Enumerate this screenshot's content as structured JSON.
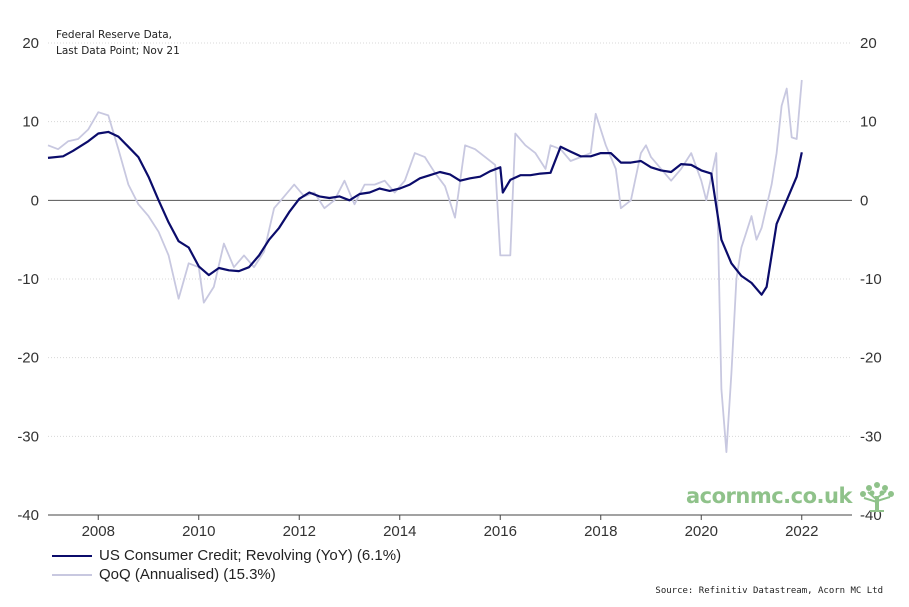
{
  "note": {
    "line1": "Federal Reserve Data,",
    "line2": "Last Data Point; Nov 21"
  },
  "legend": {
    "items": [
      {
        "label": "US Consumer Credit; Revolving (YoY) (6.1%)",
        "color": "#0b0c6b"
      },
      {
        "label": "QoQ (Annualised) (15.3%)",
        "color": "#c8c8e0"
      }
    ]
  },
  "source": "Source: Refinitiv Datastream, Acorn MC Ltd",
  "brand": {
    "text": "acornmc.co.uk",
    "icon": "tree-icon",
    "color": "#8fc28a"
  },
  "chart_data": {
    "type": "line",
    "title": "",
    "xlabel": "",
    "ylabel": "",
    "xlim": [
      2007.0,
      2023.0
    ],
    "ylim": [
      -40,
      20
    ],
    "xticks": [
      2008,
      2010,
      2012,
      2014,
      2016,
      2018,
      2020,
      2022
    ],
    "yticks_left": [
      20,
      10,
      0,
      -10,
      -20,
      -30,
      -40
    ],
    "yticks_right": [
      20,
      10,
      0,
      -10,
      -20,
      -30,
      -40
    ],
    "grid": "horizontal dotted",
    "zero_line": true,
    "legend_position": "bottom-left",
    "series": [
      {
        "name": "US Consumer Credit; Revolving (YoY) (6.1%)",
        "color": "#0b0c6b",
        "points": [
          [
            2007.0,
            5.4
          ],
          [
            2007.3,
            5.6
          ],
          [
            2007.5,
            6.3
          ],
          [
            2007.8,
            7.5
          ],
          [
            2008.0,
            8.5
          ],
          [
            2008.2,
            8.7
          ],
          [
            2008.4,
            8.1
          ],
          [
            2008.6,
            6.8
          ],
          [
            2008.8,
            5.5
          ],
          [
            2009.0,
            3.0
          ],
          [
            2009.2,
            0.0
          ],
          [
            2009.4,
            -2.8
          ],
          [
            2009.6,
            -5.2
          ],
          [
            2009.8,
            -6.0
          ],
          [
            2010.0,
            -8.4
          ],
          [
            2010.2,
            -9.5
          ],
          [
            2010.4,
            -8.6
          ],
          [
            2010.6,
            -8.9
          ],
          [
            2010.8,
            -9.0
          ],
          [
            2011.0,
            -8.5
          ],
          [
            2011.2,
            -7.0
          ],
          [
            2011.4,
            -5.0
          ],
          [
            2011.6,
            -3.5
          ],
          [
            2011.8,
            -1.5
          ],
          [
            2012.0,
            0.2
          ],
          [
            2012.2,
            1.0
          ],
          [
            2012.4,
            0.5
          ],
          [
            2012.6,
            0.3
          ],
          [
            2012.8,
            0.5
          ],
          [
            2013.0,
            0.0
          ],
          [
            2013.2,
            0.8
          ],
          [
            2013.4,
            1.0
          ],
          [
            2013.6,
            1.5
          ],
          [
            2013.8,
            1.2
          ],
          [
            2014.0,
            1.5
          ],
          [
            2014.2,
            2.0
          ],
          [
            2014.4,
            2.8
          ],
          [
            2014.6,
            3.2
          ],
          [
            2014.8,
            3.6
          ],
          [
            2015.0,
            3.3
          ],
          [
            2015.2,
            2.5
          ],
          [
            2015.4,
            2.8
          ],
          [
            2015.6,
            3.0
          ],
          [
            2015.8,
            3.7
          ],
          [
            2016.0,
            4.2
          ],
          [
            2016.05,
            1.0
          ],
          [
            2016.2,
            2.6
          ],
          [
            2016.4,
            3.2
          ],
          [
            2016.6,
            3.2
          ],
          [
            2016.8,
            3.4
          ],
          [
            2017.0,
            3.5
          ],
          [
            2017.2,
            6.8
          ],
          [
            2017.4,
            6.2
          ],
          [
            2017.6,
            5.6
          ],
          [
            2017.8,
            5.6
          ],
          [
            2018.0,
            6.0
          ],
          [
            2018.2,
            6.0
          ],
          [
            2018.4,
            4.8
          ],
          [
            2018.6,
            4.8
          ],
          [
            2018.8,
            5.0
          ],
          [
            2019.0,
            4.2
          ],
          [
            2019.2,
            3.8
          ],
          [
            2019.4,
            3.6
          ],
          [
            2019.6,
            4.6
          ],
          [
            2019.8,
            4.5
          ],
          [
            2020.0,
            3.8
          ],
          [
            2020.2,
            3.4
          ],
          [
            2020.4,
            -5.0
          ],
          [
            2020.6,
            -8.0
          ],
          [
            2020.8,
            -9.6
          ],
          [
            2021.0,
            -10.5
          ],
          [
            2021.2,
            -12.0
          ],
          [
            2021.3,
            -11.0
          ],
          [
            2021.5,
            -3.0
          ],
          [
            2021.7,
            0.0
          ],
          [
            2021.9,
            3.0
          ],
          [
            2022.0,
            6.1
          ]
        ]
      },
      {
        "name": "QoQ (Annualised) (15.3%)",
        "color": "#c8c8e0",
        "points": [
          [
            2007.0,
            7.0
          ],
          [
            2007.2,
            6.5
          ],
          [
            2007.4,
            7.5
          ],
          [
            2007.6,
            7.8
          ],
          [
            2007.8,
            9.0
          ],
          [
            2008.0,
            11.2
          ],
          [
            2008.2,
            10.8
          ],
          [
            2008.4,
            6.5
          ],
          [
            2008.6,
            2.0
          ],
          [
            2008.8,
            -0.5
          ],
          [
            2009.0,
            -2.0
          ],
          [
            2009.2,
            -4.0
          ],
          [
            2009.4,
            -7.0
          ],
          [
            2009.6,
            -12.5
          ],
          [
            2009.8,
            -8.0
          ],
          [
            2010.0,
            -8.5
          ],
          [
            2010.1,
            -13.0
          ],
          [
            2010.3,
            -11.0
          ],
          [
            2010.5,
            -5.5
          ],
          [
            2010.7,
            -8.5
          ],
          [
            2010.9,
            -7.0
          ],
          [
            2011.1,
            -8.5
          ],
          [
            2011.3,
            -6.5
          ],
          [
            2011.5,
            -1.0
          ],
          [
            2011.7,
            0.5
          ],
          [
            2011.9,
            2.0
          ],
          [
            2012.1,
            0.5
          ],
          [
            2012.3,
            1.0
          ],
          [
            2012.5,
            -1.0
          ],
          [
            2012.7,
            0.0
          ],
          [
            2012.9,
            2.5
          ],
          [
            2013.1,
            -0.5
          ],
          [
            2013.3,
            2.0
          ],
          [
            2013.5,
            2.0
          ],
          [
            2013.7,
            2.5
          ],
          [
            2013.9,
            1.0
          ],
          [
            2014.1,
            2.5
          ],
          [
            2014.3,
            6.0
          ],
          [
            2014.5,
            5.5
          ],
          [
            2014.7,
            3.5
          ],
          [
            2014.9,
            1.8
          ],
          [
            2015.1,
            -2.2
          ],
          [
            2015.3,
            7.0
          ],
          [
            2015.5,
            6.5
          ],
          [
            2015.7,
            5.5
          ],
          [
            2015.9,
            4.5
          ],
          [
            2016.0,
            -7.0
          ],
          [
            2016.2,
            -7.0
          ],
          [
            2016.3,
            8.5
          ],
          [
            2016.5,
            7.0
          ],
          [
            2016.7,
            6.0
          ],
          [
            2016.9,
            4.0
          ],
          [
            2017.0,
            7.0
          ],
          [
            2017.2,
            6.5
          ],
          [
            2017.4,
            5.0
          ],
          [
            2017.6,
            5.5
          ],
          [
            2017.8,
            6.0
          ],
          [
            2017.9,
            11.0
          ],
          [
            2018.1,
            7.0
          ],
          [
            2018.3,
            4.0
          ],
          [
            2018.4,
            -1.0
          ],
          [
            2018.6,
            0.0
          ],
          [
            2018.8,
            6.0
          ],
          [
            2018.9,
            7.0
          ],
          [
            2019.0,
            5.5
          ],
          [
            2019.2,
            4.0
          ],
          [
            2019.4,
            2.5
          ],
          [
            2019.6,
            4.0
          ],
          [
            2019.8,
            6.0
          ],
          [
            2020.0,
            2.5
          ],
          [
            2020.1,
            0.0
          ],
          [
            2020.2,
            3.0
          ],
          [
            2020.3,
            6.0
          ],
          [
            2020.4,
            -24.0
          ],
          [
            2020.5,
            -32.0
          ],
          [
            2020.6,
            -22.0
          ],
          [
            2020.7,
            -10.0
          ],
          [
            2020.8,
            -6.0
          ],
          [
            2020.9,
            -4.0
          ],
          [
            2021.0,
            -2.0
          ],
          [
            2021.1,
            -5.0
          ],
          [
            2021.2,
            -3.5
          ],
          [
            2021.4,
            2.0
          ],
          [
            2021.5,
            6.0
          ],
          [
            2021.6,
            12.0
          ],
          [
            2021.7,
            14.2
          ],
          [
            2021.8,
            8.0
          ],
          [
            2021.9,
            7.8
          ],
          [
            2022.0,
            15.3
          ]
        ]
      }
    ]
  }
}
